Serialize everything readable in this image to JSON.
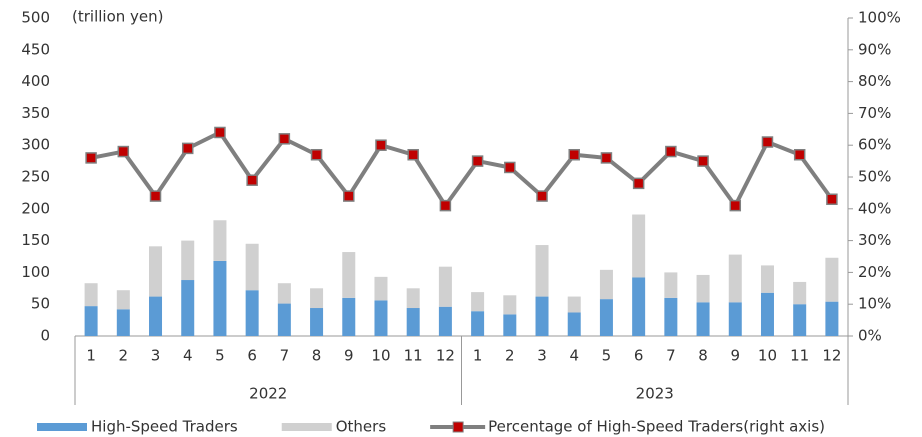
{
  "chart_data": {
    "type": "bar_line",
    "unit_label": "(trillion yen)",
    "categories": [
      "1",
      "2",
      "3",
      "4",
      "5",
      "6",
      "7",
      "8",
      "9",
      "10",
      "11",
      "12",
      "1",
      "2",
      "3",
      "4",
      "5",
      "6",
      "7",
      "8",
      "9",
      "10",
      "11",
      "12"
    ],
    "category_groups": [
      "2022",
      "2023"
    ],
    "series": [
      {
        "name": "High-Speed Traders",
        "color": "#5b9bd5",
        "kind": "bar",
        "values": [
          47,
          42,
          62,
          88,
          118,
          72,
          51,
          44,
          60,
          56,
          44,
          46,
          39,
          34,
          62,
          37,
          58,
          92,
          60,
          53,
          53,
          68,
          50,
          54
        ]
      },
      {
        "name": "Others",
        "color": "#d0d0d0",
        "kind": "bar",
        "values": [
          36,
          30,
          79,
          62,
          64,
          73,
          32,
          31,
          72,
          37,
          31,
          63,
          30,
          30,
          81,
          25,
          46,
          99,
          40,
          43,
          75,
          43,
          35,
          69
        ]
      },
      {
        "name": "Percentage of High-Speed Traders(right axis)",
        "color": "#7f7f7f",
        "marker_color": "#c00000",
        "kind": "line",
        "axis": "y2",
        "values": [
          56,
          58,
          44,
          59,
          64,
          49,
          62,
          57,
          44,
          60,
          57,
          41,
          55,
          53,
          44,
          57,
          56,
          48,
          58,
          55,
          41,
          61,
          57,
          43
        ]
      }
    ],
    "ylim": [
      0,
      500
    ],
    "yticks": [
      0,
      50,
      100,
      150,
      200,
      250,
      300,
      350,
      400,
      450,
      500
    ],
    "y2lim": [
      0,
      100
    ],
    "y2ticks": [
      {
        "value": 0,
        "label": "0%"
      },
      {
        "value": 10,
        "label": "10%"
      },
      {
        "value": 20,
        "label": "20%"
      },
      {
        "value": 30,
        "label": "30%"
      },
      {
        "value": 40,
        "label": "40%"
      },
      {
        "value": 50,
        "label": "50%"
      },
      {
        "value": 60,
        "label": "60%"
      },
      {
        "value": 70,
        "label": "70%"
      },
      {
        "value": 80,
        "label": "80%"
      },
      {
        "value": 90,
        "label": "90%"
      },
      {
        "value": 100,
        "label": "100%"
      }
    ],
    "grid": false,
    "legend": "bottom"
  }
}
